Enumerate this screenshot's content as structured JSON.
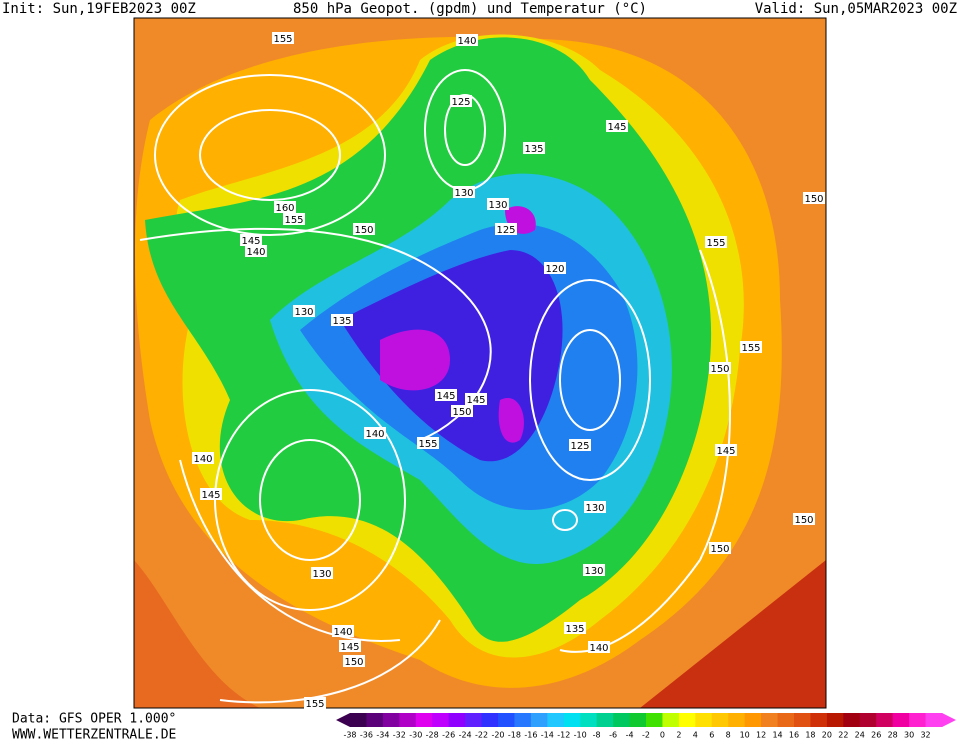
{
  "header": {
    "init": "Init: Sun,19FEB2023 00Z",
    "title": "850 hPa Geopot. (gpdm) und Temperatur (°C)",
    "valid": "Valid: Sun,05MAR2023 00Z"
  },
  "footer": {
    "data": "Data: GFS OPER 1.000°",
    "site": "WWW.WETTERZENTRALE.DE"
  },
  "color_scale": [
    -38,
    -36,
    -34,
    -32,
    -30,
    -28,
    -26,
    -24,
    -22,
    -20,
    -18,
    -16,
    -14,
    -12,
    -10,
    -8,
    -6,
    -4,
    -2,
    0,
    2,
    4,
    6,
    8,
    10,
    12,
    14,
    16,
    18,
    20,
    22,
    24,
    26,
    28,
    30,
    32
  ],
  "contour_labels": [
    155,
    140,
    125,
    145,
    135,
    130,
    130,
    125,
    160,
    155,
    150,
    145,
    140,
    155,
    150,
    120,
    130,
    135,
    155,
    150,
    145,
    145,
    150,
    140,
    155,
    125,
    140,
    145,
    145,
    130,
    150,
    150,
    130,
    130,
    135,
    140,
    140,
    150,
    155,
    145
  ]
}
